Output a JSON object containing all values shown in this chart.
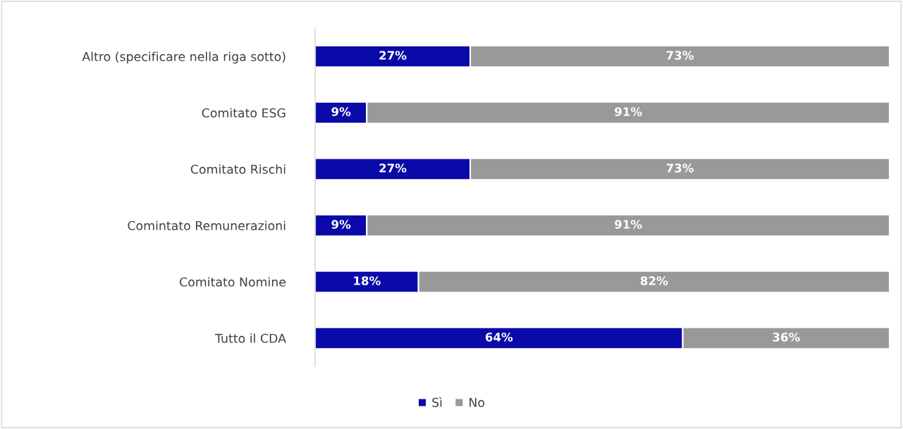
{
  "chart_data": {
    "type": "bar",
    "orientation": "horizontal",
    "stacked": true,
    "categories": [
      "Altro (specificare nella riga sotto)",
      "Comitato ESG",
      "Comitato Rischi",
      "Comintato Remunerazioni",
      "Comitato Nomine",
      "Tutto il CDA"
    ],
    "series": [
      {
        "name": "Sì",
        "color": "#0a0aa8",
        "values": [
          27,
          9,
          27,
          9,
          18,
          64
        ],
        "value_labels": [
          "27%",
          "9%",
          "27%",
          "9%",
          "18%",
          "64%"
        ]
      },
      {
        "name": "No",
        "color": "#999999",
        "values": [
          73,
          91,
          73,
          91,
          82,
          36
        ],
        "value_labels": [
          "73%",
          "91%",
          "73%",
          "91%",
          "82%",
          "36%"
        ]
      }
    ],
    "legend": "bottom",
    "tick_labels": "y"
  }
}
